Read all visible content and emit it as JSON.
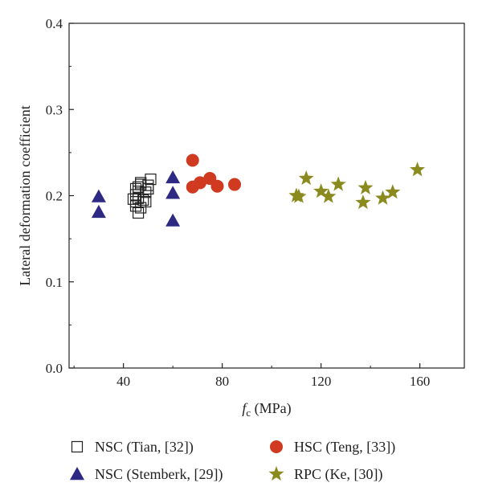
{
  "chart_data": {
    "type": "scatter",
    "xlabel": {
      "symbol": "f",
      "subscript": "c",
      "unit": " (MPa)"
    },
    "ylabel": "Lateral deformation coefficient",
    "xlim": [
      18,
      178
    ],
    "ylim": [
      0,
      0.4
    ],
    "xticks": [
      40,
      80,
      120,
      160
    ],
    "yticks": [
      0.0,
      0.1,
      0.2,
      0.3,
      0.4
    ],
    "ytick_labels": [
      "0.0",
      "0.1",
      "0.2",
      "0.3",
      "0.4"
    ],
    "legend_position": "bottom",
    "series": [
      {
        "name": "NSC (Tian, [32])",
        "marker": "open-square",
        "color": "#222222",
        "points": [
          [
            45,
            0.193
          ],
          [
            46,
            0.197
          ],
          [
            45,
            0.188
          ],
          [
            46,
            0.18
          ],
          [
            47,
            0.186
          ],
          [
            45,
            0.201
          ],
          [
            46,
            0.205
          ],
          [
            47,
            0.213
          ],
          [
            46,
            0.21
          ],
          [
            45,
            0.208
          ],
          [
            48,
            0.195
          ],
          [
            49,
            0.204
          ],
          [
            50,
            0.212
          ],
          [
            51,
            0.219
          ],
          [
            50,
            0.208
          ],
          [
            49,
            0.193
          ],
          [
            47,
            0.215
          ],
          [
            44,
            0.196
          ]
        ]
      },
      {
        "name": "NSC (Stemberk, [29])",
        "marker": "filled-triangle",
        "color": "#2e2a84",
        "points": [
          [
            30,
            0.199
          ],
          [
            30,
            0.181
          ],
          [
            60,
            0.221
          ],
          [
            60,
            0.203
          ],
          [
            60,
            0.171
          ]
        ]
      },
      {
        "name": "HSC (Teng, [33])",
        "marker": "filled-circle",
        "color": "#d03a20",
        "points": [
          [
            68,
            0.241
          ],
          [
            68,
            0.21
          ],
          [
            71,
            0.215
          ],
          [
            75,
            0.22
          ],
          [
            78,
            0.211
          ],
          [
            85,
            0.213
          ]
        ]
      },
      {
        "name": "RPC (Ke, [30])",
        "marker": "filled-star",
        "color": "#8a8a1e",
        "points": [
          [
            110,
            0.2
          ],
          [
            111,
            0.199
          ],
          [
            114,
            0.22
          ],
          [
            120,
            0.205
          ],
          [
            123,
            0.199
          ],
          [
            127,
            0.213
          ],
          [
            137,
            0.192
          ],
          [
            138,
            0.209
          ],
          [
            145,
            0.197
          ],
          [
            149,
            0.204
          ],
          [
            159,
            0.23
          ]
        ]
      }
    ]
  }
}
